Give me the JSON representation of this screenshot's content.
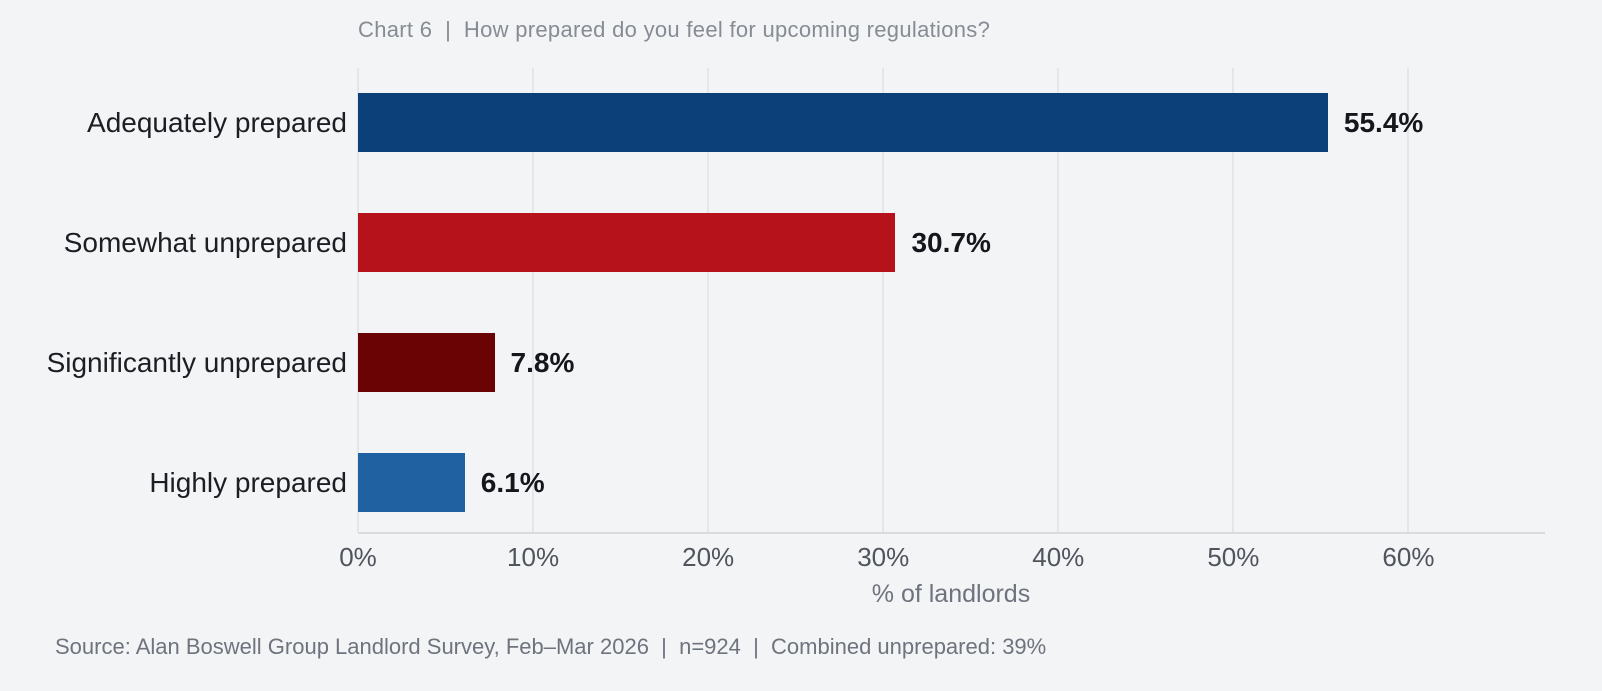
{
  "source": "Source: Alan Boswell Group Landlord Survey, Feb–Mar 2026  |  n=924  |  Combined unprepared: 39%",
  "chart_data": {
    "type": "bar",
    "orientation": "horizontal",
    "title": "Chart 6  |  How prepared do you feel for upcoming regulations?",
    "categories": [
      "Adequately prepared",
      "Somewhat unprepared",
      "Significantly unprepared",
      "Highly prepared"
    ],
    "values": [
      55.4,
      30.7,
      7.8,
      6.1
    ],
    "value_labels": [
      "55.4%",
      "30.7%",
      "7.8%",
      "6.1%"
    ],
    "bar_colors": [
      "#0c4078",
      "#b6121c",
      "#6a0303",
      "#1f61a1"
    ],
    "xlabel": "% of landlords",
    "xlim": [
      0,
      67.8
    ],
    "x_ticks": [
      "0%",
      "10%",
      "20%",
      "30%",
      "40%",
      "50%",
      "60%"
    ],
    "x_tick_values": [
      0,
      10,
      20,
      30,
      40,
      50,
      60
    ],
    "grid": true,
    "legend": false,
    "background_color": "#f3f4f6",
    "gridline_color": "#e4e6ea"
  }
}
